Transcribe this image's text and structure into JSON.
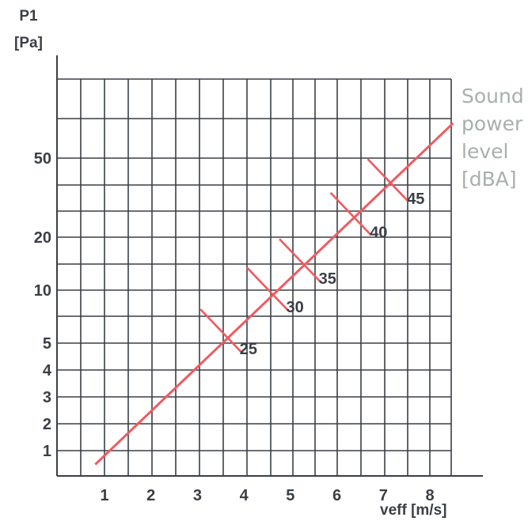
{
  "chart_data": {
    "type": "line",
    "ylabel": [
      "P1",
      "[Pa]"
    ],
    "xlabel": "veff [m/s]",
    "legend_title": [
      "Sound",
      "power",
      "level",
      "[dBA]"
    ],
    "x_ticks": [
      "1",
      "2",
      "3",
      "4",
      "5",
      "6",
      "7",
      "8"
    ],
    "y_ticks": [
      "1",
      "2",
      "3",
      "4",
      "5",
      "10",
      "20",
      "50"
    ],
    "xlim": [
      0,
      9
    ],
    "grid": true,
    "series": [
      {
        "x": [
          0.8,
          8.5
        ],
        "y": [
          0.7,
          79
        ]
      }
    ],
    "sound_power_marks": [
      {
        "label": "25",
        "x": 3.5,
        "y": 5.9
      },
      {
        "label": "30",
        "x": 4.5,
        "y": 10.2
      },
      {
        "label": "35",
        "x": 5.2,
        "y": 14.8
      },
      {
        "label": "40",
        "x": 6.3,
        "y": 26.2
      },
      {
        "label": "45",
        "x": 7.1,
        "y": 38.7
      }
    ],
    "colors": {
      "line": "#f05a5f",
      "grid": "#3a3f45",
      "axis": "#3a3f45",
      "text": "#3a3f45",
      "legend": "#a9aeae"
    }
  }
}
